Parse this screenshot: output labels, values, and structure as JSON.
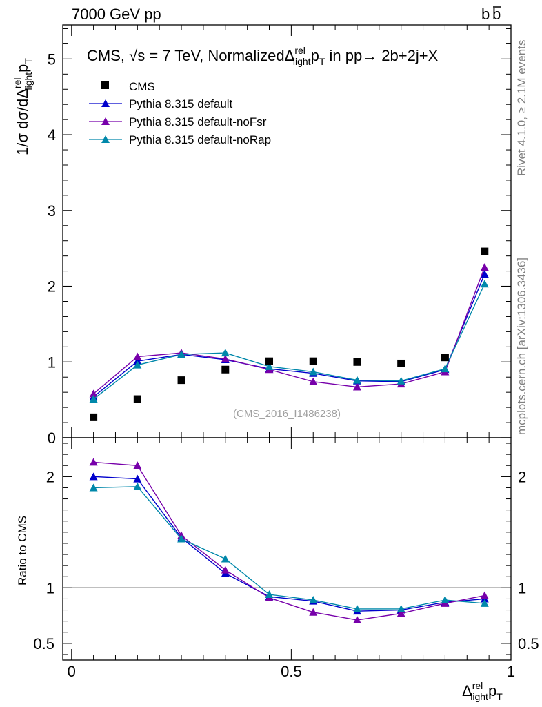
{
  "header": {
    "left": "7000 GeV pp",
    "right_base": "b",
    "right_over": "b"
  },
  "side_labels": {
    "rivet": "Rivet 4.1.0, ≥ 2.1M events",
    "mcplots": "mcplots.cern.ch [arXiv:1306.3436]"
  },
  "chart_data": {
    "type": "scatter",
    "title": {
      "prefix": "CMS, ",
      "sqrt": "√s",
      "energy": " = 7 TeV, Normalized",
      "delta": "Δ",
      "sup": "rel",
      "sub": "light",
      "p": "p",
      "psub": "T",
      "suffix": " in pp→  2b+2j+X"
    },
    "ylabel_main": {
      "text": "1/σ dσ/dΔ",
      "sup": "rel",
      "sub": "light",
      "p": "p",
      "psub": "T"
    },
    "ylabel_ratio": "Ratio to CMS",
    "xlabel": {
      "delta": "Δ",
      "sup": "rel",
      "sub": "light",
      "p": "p",
      "psub": "T"
    },
    "watermark": "(CMS_2016_I1486238)",
    "main_ylim": [
      0,
      5.45
    ],
    "main_yticks": [
      {
        "v": 0,
        "label": "0"
      },
      {
        "v": 1,
        "label": "1"
      },
      {
        "v": 2,
        "label": "2"
      },
      {
        "v": 3,
        "label": "3"
      },
      {
        "v": 4,
        "label": "4"
      },
      {
        "v": 5,
        "label": "5"
      }
    ],
    "ratio_ylim": [
      0.35,
      2.35
    ],
    "ratio_yticks": [
      {
        "v": 0.5,
        "label": "0.5"
      },
      {
        "v": 1,
        "label": "1"
      },
      {
        "v": 2,
        "label": "2"
      }
    ],
    "xlim": [
      -0.02,
      1.0
    ],
    "xticks": [
      {
        "v": 0,
        "label": "0"
      },
      {
        "v": 0.5,
        "label": "0.5"
      },
      {
        "v": 1,
        "label": "1"
      }
    ],
    "x": [
      0.05,
      0.15,
      0.25,
      0.35,
      0.45,
      0.55,
      0.65,
      0.75,
      0.85,
      0.94
    ],
    "data": {
      "name": "CMS",
      "values": [
        0.27,
        0.51,
        0.76,
        0.9,
        1.01,
        1.01,
        1.0,
        0.98,
        1.06,
        2.46
      ]
    },
    "series": [
      {
        "name": "Pythia 8.315 default",
        "color": "#0000cc",
        "values": [
          0.54,
          1.01,
          1.1,
          1.03,
          0.91,
          0.85,
          0.75,
          0.74,
          0.9,
          2.16
        ],
        "ratio": [
          2.0,
          1.98,
          1.45,
          1.13,
          0.92,
          0.88,
          0.79,
          0.8,
          0.87,
          0.9
        ]
      },
      {
        "name": "Pythia 8.315 default-noFsr",
        "color": "#7700aa",
        "values": [
          0.58,
          1.07,
          1.12,
          1.04,
          0.9,
          0.74,
          0.67,
          0.71,
          0.87,
          2.25
        ],
        "ratio": [
          2.13,
          2.1,
          1.47,
          1.16,
          0.91,
          0.78,
          0.71,
          0.77,
          0.86,
          0.93
        ]
      },
      {
        "name": "Pythia 8.315 default-noRap",
        "color": "#0088aa",
        "values": [
          0.51,
          0.96,
          1.1,
          1.12,
          0.94,
          0.87,
          0.76,
          0.75,
          0.91,
          2.03
        ],
        "ratio": [
          1.9,
          1.91,
          1.44,
          1.26,
          0.94,
          0.89,
          0.81,
          0.81,
          0.89,
          0.86
        ]
      }
    ]
  }
}
